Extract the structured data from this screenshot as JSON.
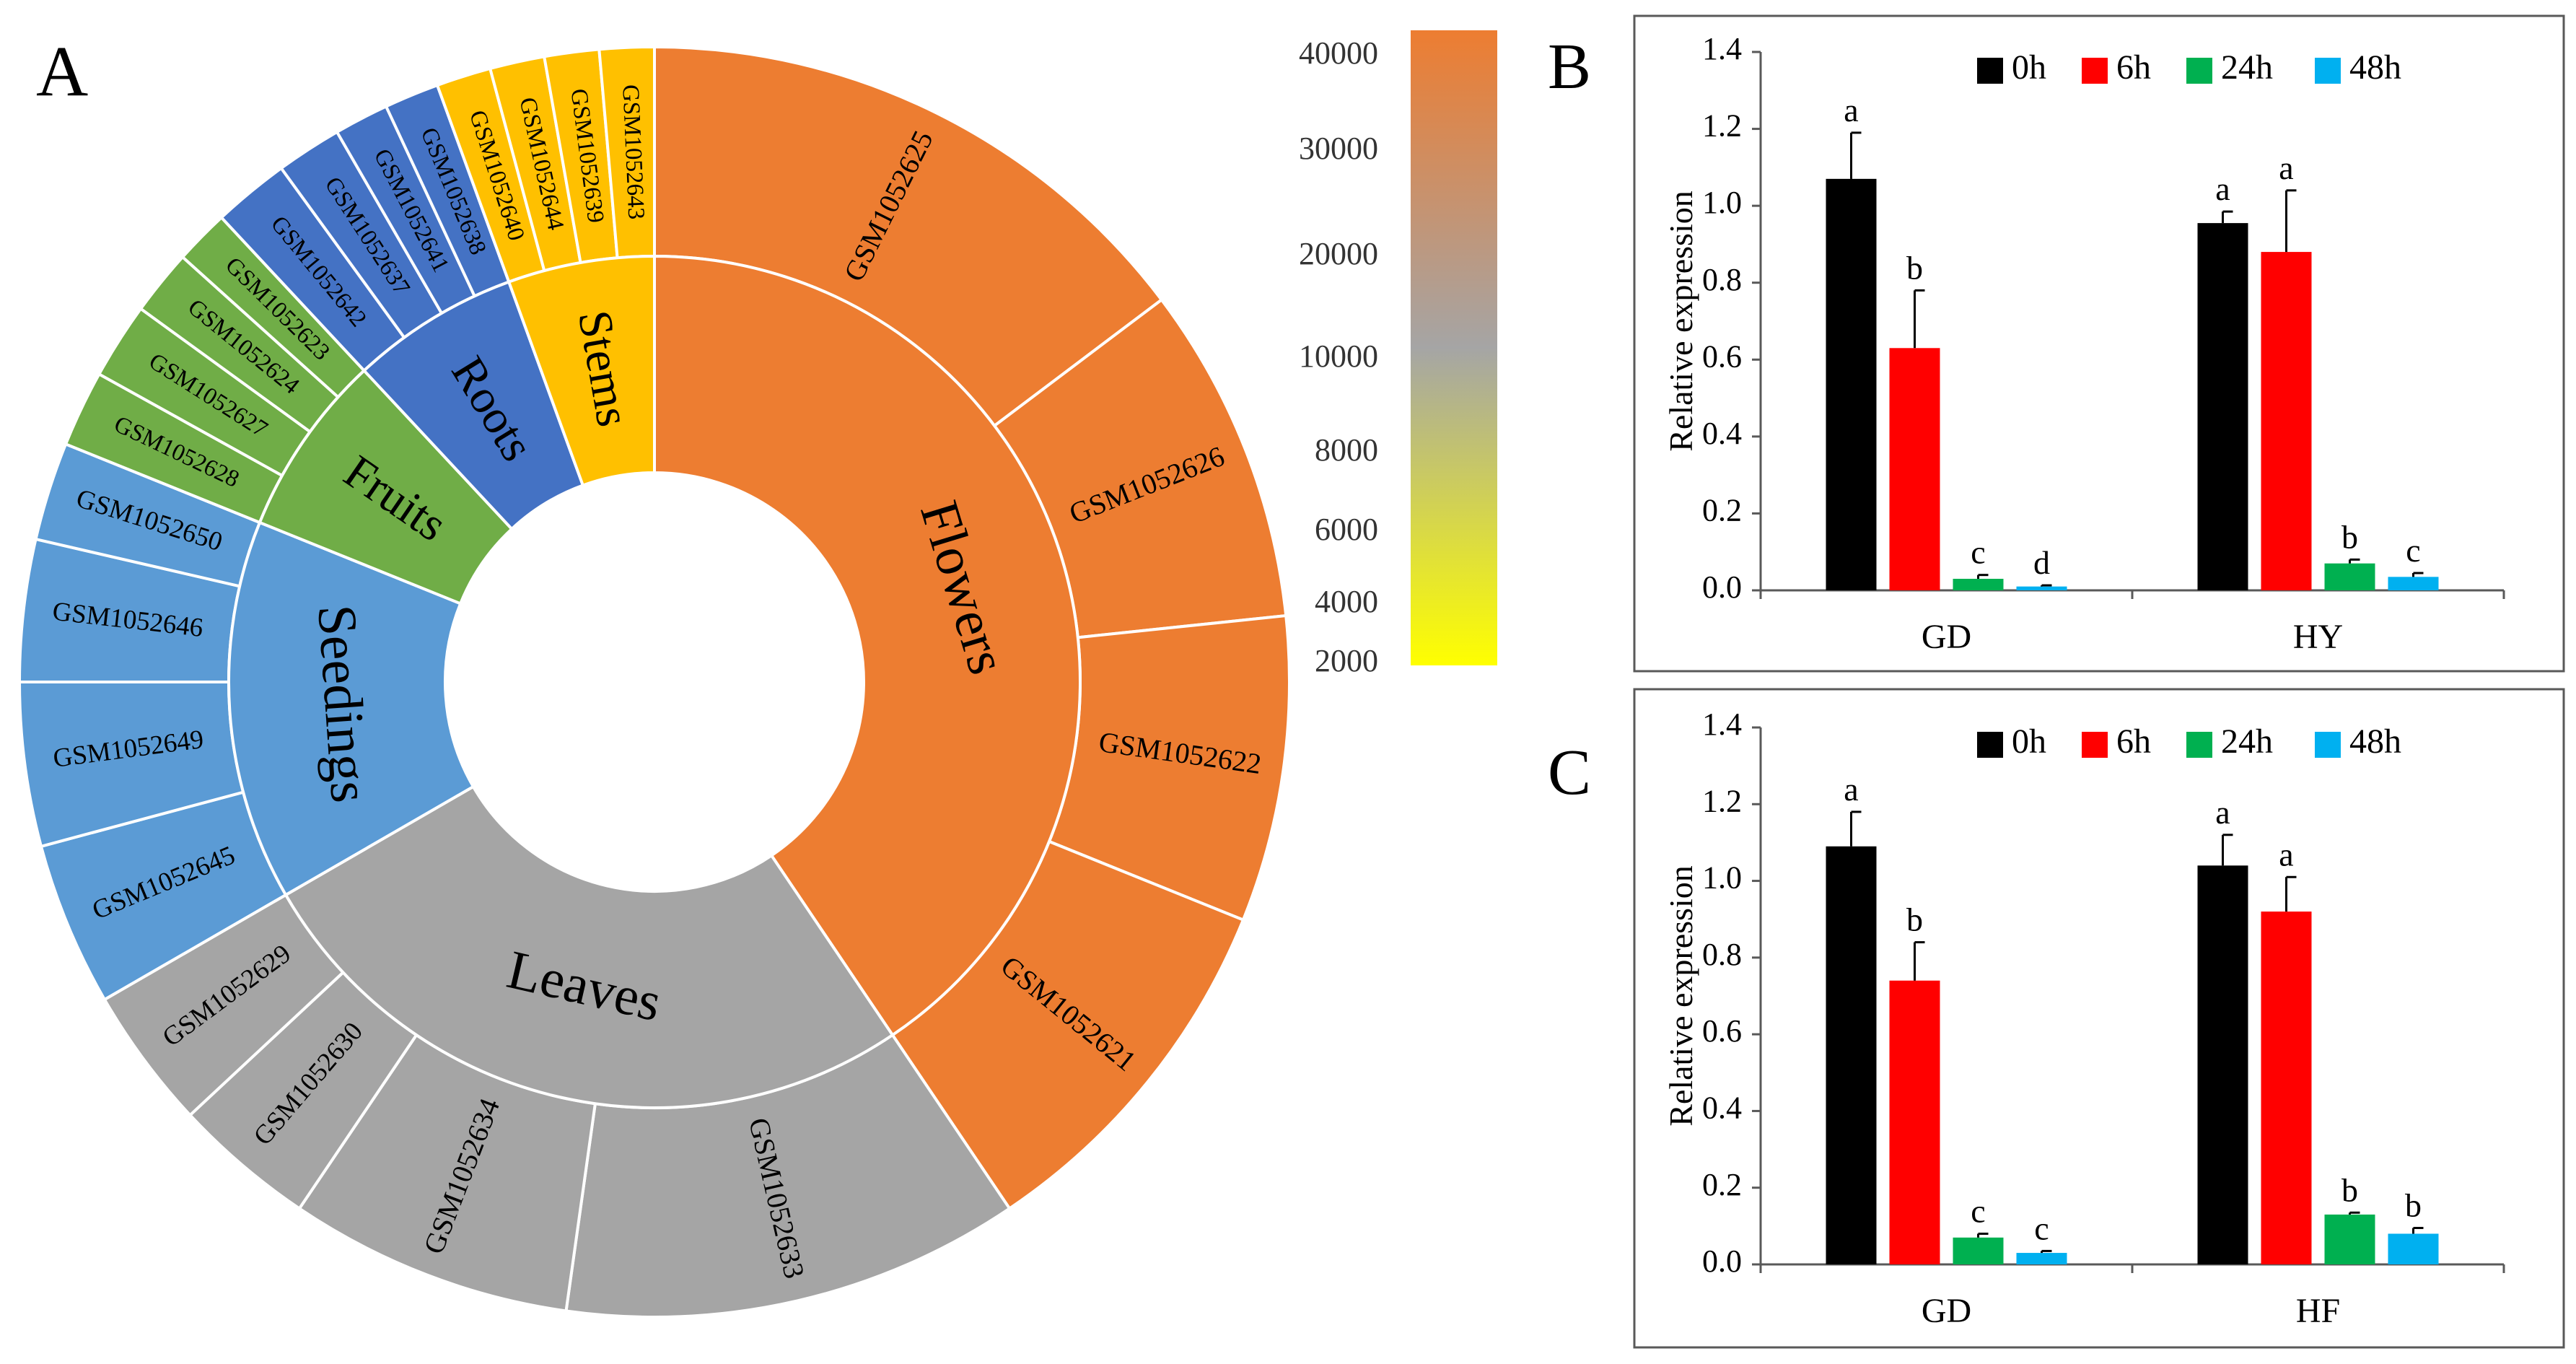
{
  "panels": {
    "a": "A",
    "b": "B",
    "c": "C"
  },
  "colors": {
    "Flowers": "#ED7D31",
    "Leaves": "#A5A5A5",
    "Seedings": "#5B9BD5",
    "Fruits": "#70AD47",
    "Roots": "#4472C4",
    "Stems": "#FFC000",
    "t0h": "#000000",
    "t6h": "#FF0000",
    "t24h": "#00B050",
    "t48h": "#00B0F0"
  },
  "chart_data": [
    {
      "type": "sunburst",
      "panel": "A",
      "inner": [
        {
          "label": "Flowers",
          "startDeg": 0,
          "endDeg": 146
        },
        {
          "label": "Leaves",
          "startDeg": 146,
          "endDeg": 240
        },
        {
          "label": "Seedings",
          "startDeg": 240,
          "endDeg": 292
        },
        {
          "label": "Fruits",
          "startDeg": 292,
          "endDeg": 317
        },
        {
          "label": "Roots",
          "startDeg": 317,
          "endDeg": 340
        },
        {
          "label": "Stems",
          "startDeg": 340,
          "endDeg": 360
        }
      ],
      "outer": [
        {
          "label": "GSM1052625",
          "parent": "Flowers",
          "startDeg": 0,
          "endDeg": 53
        },
        {
          "label": "GSM1052626",
          "parent": "Flowers",
          "startDeg": 53,
          "endDeg": 84
        },
        {
          "label": "GSM1052622",
          "parent": "Flowers",
          "startDeg": 84,
          "endDeg": 112
        },
        {
          "label": "GSM1052621",
          "parent": "Flowers",
          "startDeg": 112,
          "endDeg": 146
        },
        {
          "label": "GSM1052633",
          "parent": "Leaves",
          "startDeg": 146,
          "endDeg": 188
        },
        {
          "label": "GSM1052634",
          "parent": "Leaves",
          "startDeg": 188,
          "endDeg": 214
        },
        {
          "label": "GSM1052630",
          "parent": "Leaves",
          "startDeg": 214,
          "endDeg": 227
        },
        {
          "label": "GSM1052629",
          "parent": "Leaves",
          "startDeg": 227,
          "endDeg": 240
        },
        {
          "label": "GSM1052645",
          "parent": "Seedings",
          "startDeg": 240,
          "endDeg": 255
        },
        {
          "label": "GSM1052649",
          "parent": "Seedings",
          "startDeg": 255,
          "endDeg": 270
        },
        {
          "label": "GSM1052646",
          "parent": "Seedings",
          "startDeg": 270,
          "endDeg": 283
        },
        {
          "label": "GSM1052650",
          "parent": "Seedings",
          "startDeg": 283,
          "endDeg": 292
        },
        {
          "label": "GSM1052628",
          "parent": "Fruits",
          "startDeg": 292,
          "endDeg": 299
        },
        {
          "label": "GSM1052627",
          "parent": "Fruits",
          "startDeg": 299,
          "endDeg": 306
        },
        {
          "label": "GSM1052624",
          "parent": "Fruits",
          "startDeg": 306,
          "endDeg": 312
        },
        {
          "label": "GSM1052623",
          "parent": "Fruits",
          "startDeg": 312,
          "endDeg": 317
        },
        {
          "label": "GSM1052642",
          "parent": "Roots",
          "startDeg": 317,
          "endDeg": 324
        },
        {
          "label": "GSM1052637",
          "parent": "Roots",
          "startDeg": 324,
          "endDeg": 330
        },
        {
          "label": "GSM1052641",
          "parent": "Roots",
          "startDeg": 330,
          "endDeg": 335
        },
        {
          "label": "GSM1052638",
          "parent": "Roots",
          "startDeg": 335,
          "endDeg": 340
        },
        {
          "label": "GSM1052640",
          "parent": "Stems",
          "startDeg": 340,
          "endDeg": 345
        },
        {
          "label": "GSM1052644",
          "parent": "Stems",
          "startDeg": 345,
          "endDeg": 350
        },
        {
          "label": "GSM1052639",
          "parent": "Stems",
          "startDeg": 350,
          "endDeg": 355
        },
        {
          "label": "GSM1052643",
          "parent": "Stems",
          "startDeg": 355,
          "endDeg": 360
        }
      ],
      "colorbar": {
        "ticks": [
          "40000",
          "30000",
          "20000",
          "10000",
          "8000",
          "6000",
          "4000",
          "2000"
        ],
        "stops": [
          "#ED7D31",
          "#A5A5A5",
          "#FFFF00"
        ]
      }
    },
    {
      "type": "bar",
      "panel": "B",
      "categories": [
        "GD",
        "HY"
      ],
      "series": [
        {
          "name": "0h",
          "values": [
            1.07,
            0.955
          ],
          "errors": [
            0.12,
            0.03
          ],
          "letters": [
            "a",
            "a"
          ]
        },
        {
          "name": "6h",
          "values": [
            0.63,
            0.88
          ],
          "errors": [
            0.15,
            0.16
          ],
          "letters": [
            "b",
            "a"
          ]
        },
        {
          "name": "24h",
          "values": [
            0.03,
            0.07
          ],
          "errors": [
            0.01,
            0.01
          ],
          "letters": [
            "c",
            "b"
          ]
        },
        {
          "name": "48h",
          "values": [
            0.01,
            0.035
          ],
          "errors": [
            0.003,
            0.01
          ],
          "letters": [
            "d",
            "c"
          ]
        }
      ],
      "ylabel": "Relative expression",
      "ylim": [
        0,
        1.4
      ],
      "yticks": [
        "0.0",
        "0.2",
        "0.4",
        "0.6",
        "0.8",
        "1.0",
        "1.2",
        "1.4"
      ],
      "legend": "top"
    },
    {
      "type": "bar",
      "panel": "C",
      "categories": [
        "GD",
        "HF"
      ],
      "series": [
        {
          "name": "0h",
          "values": [
            1.09,
            1.04
          ],
          "errors": [
            0.09,
            0.08
          ],
          "letters": [
            "a",
            "a"
          ]
        },
        {
          "name": "6h",
          "values": [
            0.74,
            0.92
          ],
          "errors": [
            0.1,
            0.09
          ],
          "letters": [
            "b",
            "a"
          ]
        },
        {
          "name": "24h",
          "values": [
            0.07,
            0.13
          ],
          "errors": [
            0.01,
            0.005
          ],
          "letters": [
            "c",
            "b"
          ]
        },
        {
          "name": "48h",
          "values": [
            0.03,
            0.08
          ],
          "errors": [
            0.005,
            0.015
          ],
          "letters": [
            "c",
            "b"
          ]
        }
      ],
      "ylabel": "Relative expression",
      "ylim": [
        0,
        1.4
      ],
      "yticks": [
        "0.0",
        "0.2",
        "0.4",
        "0.6",
        "0.8",
        "1.0",
        "1.2",
        "1.4"
      ],
      "legend": "top"
    }
  ]
}
